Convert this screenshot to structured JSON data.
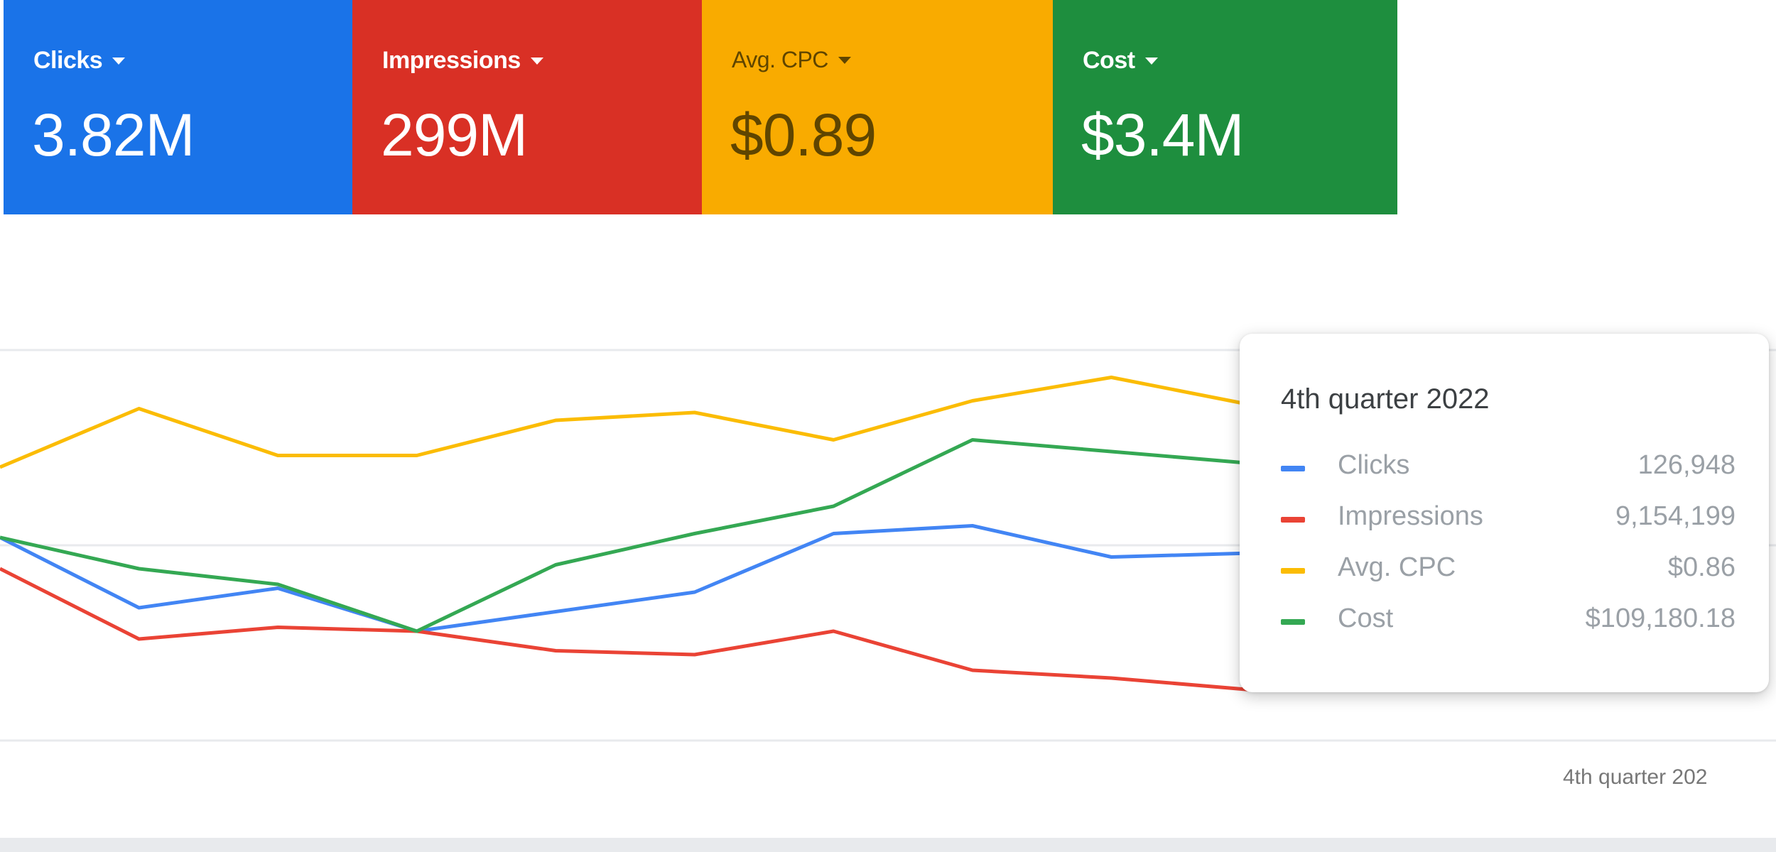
{
  "scorecards": [
    {
      "label": "Clicks",
      "value": "3.82M",
      "color": "#1a73e8"
    },
    {
      "label": "Impressions",
      "value": "299M",
      "color": "#d93025"
    },
    {
      "label": "Avg. CPC",
      "value": "$0.89",
      "color": "#f9ab00"
    },
    {
      "label": "Cost",
      "value": "$3.4M",
      "color": "#1e8e3e"
    }
  ],
  "chart_data": {
    "type": "line",
    "x_axis_label": "4th quarter 202",
    "series": [
      {
        "name": "Clicks",
        "color": "#4285f4",
        "values": [
          0.52,
          0.34,
          0.39,
          0.28,
          0.33,
          0.38,
          0.53,
          0.55,
          0.47,
          0.48
        ]
      },
      {
        "name": "Impressions",
        "color": "#ea4335",
        "values": [
          0.44,
          0.26,
          0.29,
          0.28,
          0.23,
          0.22,
          0.28,
          0.18,
          0.16,
          0.13
        ]
      },
      {
        "name": "Avg. CPC",
        "color": "#fbbc04",
        "values": [
          0.7,
          0.85,
          0.73,
          0.73,
          0.82,
          0.84,
          0.77,
          0.87,
          0.93,
          0.86
        ]
      },
      {
        "name": "Cost",
        "color": "#34a853",
        "values": [
          0.52,
          0.44,
          0.4,
          0.28,
          0.45,
          0.53,
          0.6,
          0.77,
          0.74,
          0.71
        ]
      }
    ]
  },
  "tooltip": {
    "title": "4th quarter 2022",
    "rows": [
      {
        "name": "Clicks",
        "value": "126,948",
        "color": "#4285f4"
      },
      {
        "name": "Impressions",
        "value": "9,154,199",
        "color": "#ea4335"
      },
      {
        "name": "Avg. CPC",
        "value": "$0.86",
        "color": "#fbbc04"
      },
      {
        "name": "Cost",
        "value": "$109,180.18",
        "color": "#34a853"
      }
    ]
  }
}
